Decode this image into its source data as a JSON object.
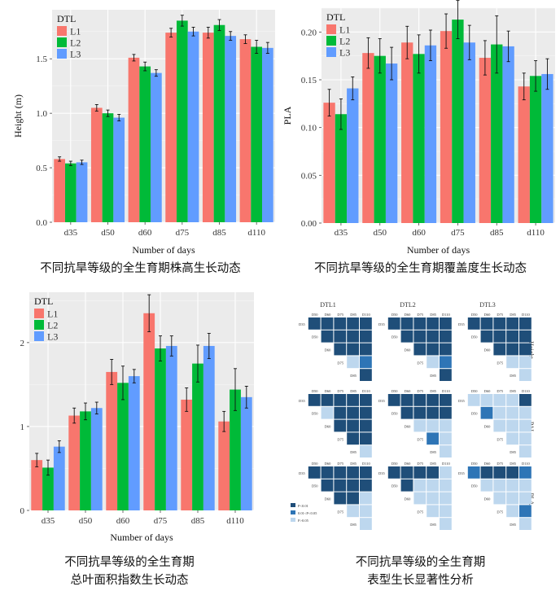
{
  "captions": {
    "height": "不同抗旱等级的全生育期株高生长动态",
    "pla": "不同抗旱等级的全生育期覆盖度生长动态",
    "pai_line1": "不同抗旱等级的全生育期",
    "pai_line2": "总叶面积指数生长动态",
    "sig_line1": "不同抗旱等级的全生育期",
    "sig_line2": "表型生长显著性分析"
  },
  "colors": {
    "L1": "#F8766D",
    "L2": "#00BA38",
    "L3": "#619CFF",
    "panel_bg": "#EBEBEB",
    "grid": "#FFFFFF",
    "sig_dark": "#1F4E79",
    "sig_mid": "#2E75B6",
    "sig_light": "#BDD7EE"
  },
  "chart_data": [
    {
      "id": "height",
      "type": "bar",
      "title": "",
      "xlabel": "Number of days",
      "ylabel": "Height (m)",
      "legend_title": "DTL",
      "legend_position": "top-left",
      "grid": true,
      "categories": [
        "d35",
        "d50",
        "d60",
        "d75",
        "d85",
        "d110"
      ],
      "ylim": [
        0,
        1.95
      ],
      "yticks": [
        0.0,
        0.5,
        1.0,
        1.5
      ],
      "ytick_labels": [
        "0.0",
        "0.5",
        "1.0",
        "1.5"
      ],
      "series": [
        {
          "name": "L1",
          "values": [
            0.58,
            1.05,
            1.51,
            1.74,
            1.74,
            1.68
          ],
          "errors": [
            0.02,
            0.03,
            0.03,
            0.04,
            0.05,
            0.04
          ]
        },
        {
          "name": "L2",
          "values": [
            0.54,
            1.0,
            1.43,
            1.85,
            1.81,
            1.61
          ],
          "errors": [
            0.02,
            0.03,
            0.04,
            0.05,
            0.05,
            0.06
          ]
        },
        {
          "name": "L3",
          "values": [
            0.55,
            0.96,
            1.37,
            1.75,
            1.71,
            1.6
          ],
          "errors": [
            0.02,
            0.03,
            0.03,
            0.04,
            0.04,
            0.05
          ]
        }
      ]
    },
    {
      "id": "pla",
      "type": "bar",
      "title": "",
      "xlabel": "Number of days",
      "ylabel": "PLA",
      "legend_title": "DTL",
      "legend_position": "top-left",
      "grid": true,
      "categories": [
        "d35",
        "d50",
        "d60",
        "d75",
        "d85",
        "d110"
      ],
      "ylim": [
        0,
        0.225
      ],
      "yticks": [
        0.0,
        0.05,
        0.1,
        0.15,
        0.2
      ],
      "ytick_labels": [
        "0.00",
        "0.05",
        "0.10",
        "0.15",
        "0.20"
      ],
      "series": [
        {
          "name": "L1",
          "values": [
            0.126,
            0.178,
            0.189,
            0.201,
            0.173,
            0.143
          ],
          "errors": [
            0.014,
            0.016,
            0.017,
            0.018,
            0.018,
            0.014
          ]
        },
        {
          "name": "L2",
          "values": [
            0.114,
            0.175,
            0.177,
            0.213,
            0.187,
            0.154
          ],
          "errors": [
            0.016,
            0.018,
            0.02,
            0.02,
            0.03,
            0.016
          ]
        },
        {
          "name": "L3",
          "values": [
            0.141,
            0.167,
            0.186,
            0.189,
            0.185,
            0.156
          ],
          "errors": [
            0.012,
            0.017,
            0.016,
            0.018,
            0.016,
            0.016
          ]
        }
      ]
    },
    {
      "id": "pai",
      "type": "bar",
      "title": "",
      "xlabel": "Number of days",
      "ylabel": "PAI",
      "legend_title": "DTL",
      "legend_position": "top-left",
      "grid": true,
      "categories": [
        "d35",
        "d50",
        "d60",
        "d75",
        "d85",
        "d110"
      ],
      "ylim": [
        0,
        2.6
      ],
      "yticks": [
        0,
        1,
        2
      ],
      "ytick_labels": [
        "0",
        "1",
        "2"
      ],
      "series": [
        {
          "name": "L1",
          "values": [
            0.6,
            1.13,
            1.65,
            2.35,
            1.32,
            1.06
          ],
          "errors": [
            0.08,
            0.09,
            0.15,
            0.22,
            0.14,
            0.12
          ]
        },
        {
          "name": "L2",
          "values": [
            0.51,
            1.18,
            1.52,
            1.93,
            1.75,
            1.44
          ],
          "errors": [
            0.09,
            0.1,
            0.2,
            0.15,
            0.22,
            0.25
          ]
        },
        {
          "name": "L3",
          "values": [
            0.76,
            1.22,
            1.6,
            1.96,
            1.96,
            1.35
          ],
          "errors": [
            0.07,
            0.07,
            0.08,
            0.12,
            0.15,
            0.13
          ]
        }
      ]
    }
  ],
  "significance": {
    "type": "heatmap",
    "columns": [
      "DTL1",
      "DTL2",
      "DTL3"
    ],
    "rows": [
      "Height",
      "PAI",
      "PLA"
    ],
    "days": [
      "D35",
      "D50",
      "D60",
      "D75",
      "D85",
      "D110"
    ],
    "legend": [
      "P<0.01",
      "0.01<P<0.05",
      "P>0.05"
    ],
    "note": "levels per upper-triangle cell: 0 = P<0.01, 1 = 0.01<P<0.05, 2 = P>0.05",
    "grids": [
      [
        [
          [
            0,
            0,
            0,
            0,
            0
          ],
          [
            0,
            0,
            0,
            0
          ],
          [
            0,
            0,
            0
          ],
          [
            2,
            1
          ],
          [
            0
          ]
        ],
        [
          [
            0,
            0,
            0,
            0,
            0
          ],
          [
            0,
            0,
            0,
            0
          ],
          [
            0,
            0,
            0
          ],
          [
            2,
            1
          ],
          [
            0
          ]
        ],
        [
          [
            0,
            0,
            0,
            0,
            0
          ],
          [
            0,
            0,
            0,
            0
          ],
          [
            0,
            0,
            0
          ],
          [
            2,
            2
          ],
          [
            2
          ]
        ]
      ],
      [
        [
          [
            0,
            0,
            0,
            0,
            0
          ],
          [
            2,
            0,
            0,
            0
          ],
          [
            0,
            0,
            0
          ],
          [
            0,
            0
          ],
          [
            2
          ]
        ],
        [
          [
            0,
            0,
            0,
            0,
            0
          ],
          [
            0,
            0,
            0,
            0
          ],
          [
            2,
            2,
            2
          ],
          [
            1,
            2
          ],
          [
            2
          ]
        ],
        [
          [
            2,
            2,
            2,
            2,
            0
          ],
          [
            1,
            2,
            2,
            2
          ],
          [
            2,
            2,
            2
          ],
          [
            2,
            2
          ],
          [
            2
          ]
        ]
      ],
      [
        [
          [
            0,
            0,
            0,
            0,
            0
          ],
          [
            0,
            0,
            0,
            0
          ],
          [
            0,
            0,
            2
          ],
          [
            2,
            2
          ],
          [
            2
          ]
        ],
        [
          [
            0,
            0,
            0,
            0,
            2
          ],
          [
            0,
            2,
            2,
            2
          ],
          [
            2,
            2,
            2
          ],
          [
            2,
            2
          ],
          [
            2
          ]
        ],
        [
          [
            1,
            0,
            0,
            0,
            1
          ],
          [
            2,
            2,
            2,
            2
          ],
          [
            2,
            2,
            2
          ],
          [
            2,
            1
          ],
          [
            2
          ]
        ]
      ]
    ]
  }
}
